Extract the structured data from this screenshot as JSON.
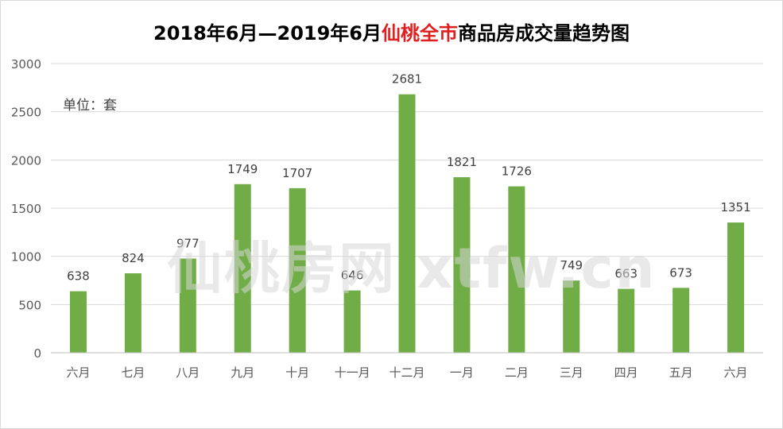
{
  "title": {
    "part1": "2018年6月—2019年6月",
    "part2": "仙桃全市",
    "part3": "商品房成交量趋势图"
  },
  "unit_label": "单位：套",
  "watermark": "仙桃房网 xtfw.cn",
  "colors": {
    "bar": "#70ad47",
    "title_highlight": "#e02020",
    "grid": "#d9d9d9",
    "axis_text": "#595959",
    "label_text": "#404040"
  },
  "chart_data": {
    "type": "bar",
    "title": "2018年6月—2019年6月仙桃全市商品房成交量趋势图",
    "categories": [
      "六月",
      "七月",
      "八月",
      "九月",
      "十月",
      "十一月",
      "十二月",
      "一月",
      "二月",
      "三月",
      "四月",
      "五月",
      "六月"
    ],
    "values": [
      638,
      824,
      977,
      1749,
      1707,
      646,
      2681,
      1821,
      1726,
      749,
      663,
      673,
      1351
    ],
    "ylim": [
      0,
      3000
    ],
    "yticks": [
      0,
      500,
      1000,
      1500,
      2000,
      2500,
      3000
    ],
    "grid": true,
    "legend": "none"
  }
}
